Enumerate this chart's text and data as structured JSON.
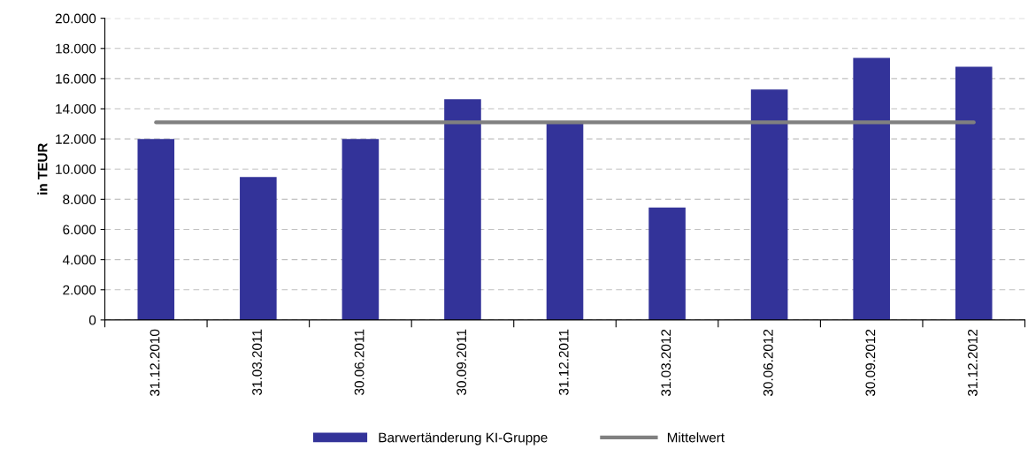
{
  "chart_data": {
    "type": "bar",
    "ylabel": "in TEUR",
    "categories": [
      "31.12.2010",
      "31.03.2011",
      "30.06.2011",
      "30.09.2011",
      "31.12.2011",
      "31.03.2012",
      "30.06.2012",
      "30.09.2012",
      "31.12.2012"
    ],
    "series": [
      {
        "name": "Barwertänderung KI-Gruppe",
        "color": "#333399",
        "values": [
          12000,
          9480,
          12000,
          14630,
          13050,
          7450,
          15280,
          17380,
          16780
        ]
      },
      {
        "name": "Mittelwert",
        "type": "line",
        "color": "#808080",
        "values": [
          13100,
          13100,
          13100,
          13100,
          13100,
          13100,
          13100,
          13100,
          13100
        ]
      }
    ],
    "ylim": [
      0,
      20000
    ],
    "yticks": [
      {
        "value": 0,
        "label": "0"
      },
      {
        "value": 2000,
        "label": "2.000"
      },
      {
        "value": 4000,
        "label": "4.000"
      },
      {
        "value": 6000,
        "label": "6.000"
      },
      {
        "value": 8000,
        "label": "8.000"
      },
      {
        "value": 10000,
        "label": "10.000"
      },
      {
        "value": 12000,
        "label": "12.000"
      },
      {
        "value": 14000,
        "label": "14.000"
      },
      {
        "value": 16000,
        "label": "16.000"
      },
      {
        "value": 18000,
        "label": "18.000"
      },
      {
        "value": 20000,
        "label": "20.000"
      }
    ],
    "grid": "y",
    "legend": "bottom",
    "marker": "none",
    "line_style": "solid"
  }
}
